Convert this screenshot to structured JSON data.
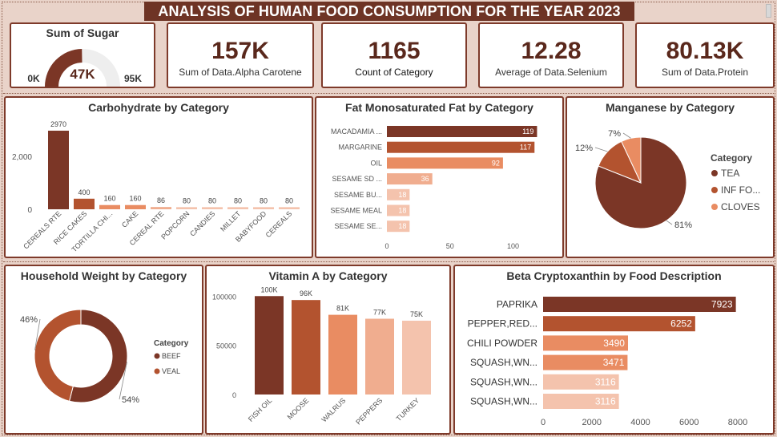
{
  "title": "ANALYSIS OF HUMAN FOOD CONSUMPTION FOR THE YEAR 2023",
  "colors": {
    "dark": "#7b3626",
    "medium": "#b3532f",
    "orange": "#e98c62",
    "light": "#f0ad8f",
    "pale": "#f4c3ad",
    "bg": "#e9d3c9"
  },
  "gauge": {
    "title": "Sum of Sugar",
    "value": 47,
    "min": 0,
    "max": 95,
    "value_label": "47K",
    "min_label": "0K",
    "max_label": "95K"
  },
  "kpis": [
    {
      "value": "157K",
      "label": "Sum of Data.Alpha Carotene"
    },
    {
      "value": "1165",
      "label": "Count of Category"
    },
    {
      "value": "12.28",
      "label": "Average of Data.Selenium"
    },
    {
      "value": "80.13K",
      "label": "Sum of Data.Protein"
    }
  ],
  "chart_data": [
    {
      "type": "bar",
      "title": "Carbohydrate by Category",
      "categories": [
        "CEREALS RTE",
        "RICE CAKES",
        "TORTILLA CHI...",
        "CAKE",
        "CEREAL RTE",
        "POPCORN",
        "CANDIES",
        "MILLET",
        "BABYFOOD",
        "CEREALS"
      ],
      "values": [
        2970,
        400,
        160,
        160,
        86,
        80,
        80,
        80,
        80,
        80
      ],
      "data_labels": [
        "2970",
        "400",
        "160",
        "160",
        "86",
        "80",
        "80",
        "80",
        "80",
        "80"
      ],
      "yticks": [
        0,
        2000
      ],
      "ytick_labels": [
        "0",
        "2,000"
      ],
      "ylim": [
        0,
        3000
      ]
    },
    {
      "type": "bar",
      "orientation": "horizontal",
      "title": "Fat Monosaturated Fat by Category",
      "categories": [
        "MACADAMIA ...",
        "MARGARINE",
        "OIL",
        "SESAME SD ...",
        "SESAME BU...",
        "SESAME MEAL",
        "SESAME SE..."
      ],
      "values": [
        119,
        117,
        92,
        36,
        18,
        18,
        18
      ],
      "data_labels": [
        "119",
        "117",
        "92",
        "36",
        "18",
        "18",
        "18"
      ],
      "xticks": [
        0,
        50,
        100
      ],
      "xtick_labels": [
        "0",
        "50",
        "100"
      ],
      "xlim": [
        0,
        120
      ]
    },
    {
      "type": "pie",
      "title": "Manganese by Category",
      "legend_title": "Category",
      "legend_position": "right",
      "labels": [
        "TEA",
        "INF FO...",
        "CLOVES"
      ],
      "values": [
        81,
        12,
        7
      ],
      "data_labels": [
        "81%",
        "12%",
        "7%"
      ]
    },
    {
      "type": "donut",
      "title": "Household Weight by Category",
      "legend_title": "Category",
      "legend_position": "right",
      "labels": [
        "BEEF",
        "VEAL"
      ],
      "values": [
        54,
        46
      ],
      "data_labels": [
        "54%",
        "46%"
      ]
    },
    {
      "type": "bar",
      "title": "Vitamin A by Category",
      "categories": [
        "FISH OIL",
        "MOOSE",
        "WALRUS",
        "PEPPERS",
        "TURKEY"
      ],
      "values": [
        100,
        96,
        81,
        77,
        75
      ],
      "data_labels": [
        "100K",
        "96K",
        "81K",
        "77K",
        "75K"
      ],
      "yticks": [
        0,
        50000,
        100000
      ],
      "ytick_labels": [
        "0",
        "50000",
        "100000"
      ],
      "ylim": [
        0,
        110
      ],
      "value_scale": 1000
    },
    {
      "type": "bar",
      "orientation": "horizontal",
      "title": "Beta Cryptoxanthin by Food Description",
      "categories": [
        "PAPRIKA",
        "PEPPER,RED...",
        "CHILI POWDER",
        "SQUASH,WN...",
        "SQUASH,WN...",
        "SQUASH,WN..."
      ],
      "values": [
        7923,
        6252,
        3490,
        3471,
        3116,
        3116
      ],
      "data_labels": [
        "7923",
        "6252",
        "3490",
        "3471",
        "3116",
        "3116"
      ],
      "xticks": [
        0,
        2000,
        4000,
        6000,
        8000
      ],
      "xtick_labels": [
        "0",
        "2000",
        "4000",
        "6000",
        "8000"
      ],
      "xlim": [
        0,
        8100
      ]
    }
  ]
}
